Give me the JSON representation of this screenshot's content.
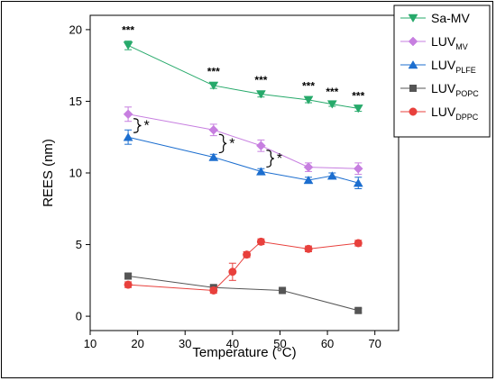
{
  "chart_data": {
    "type": "scatter",
    "xlabel": "Temperature (°C)",
    "ylabel": "REES (nm)",
    "xlim": [
      10,
      75
    ],
    "ylim": [
      -1,
      21
    ],
    "xticks": [
      10,
      20,
      30,
      40,
      50,
      60,
      70
    ],
    "yticks": [
      0,
      5,
      10,
      15,
      20
    ],
    "legend_position": "top-right",
    "series": [
      {
        "name": "Sa-MV",
        "name_main": "Sa-MV",
        "name_sub": "",
        "color": "#26a96a",
        "marker": "triangle-down",
        "x": [
          18,
          36,
          46,
          56,
          61,
          66.5
        ],
        "y": [
          18.9,
          16.1,
          15.5,
          15.1,
          14.8,
          14.5
        ],
        "err": [
          0.3,
          0.2,
          0.2,
          0.2,
          0.15,
          0.2
        ]
      },
      {
        "name": "LUVMV",
        "name_main": "LUV",
        "name_sub": "MV",
        "color": "#c77fe0",
        "marker": "diamond",
        "x": [
          18,
          36,
          46,
          56,
          66.5
        ],
        "y": [
          14.1,
          13.0,
          11.9,
          10.4,
          10.3
        ],
        "err": [
          0.5,
          0.4,
          0.4,
          0.3,
          0.4
        ]
      },
      {
        "name": "LUVPLFE",
        "name_main": "LUV",
        "name_sub": "PLFE",
        "color": "#1c6ecf",
        "marker": "triangle-up",
        "x": [
          18,
          36,
          46,
          56,
          61,
          66.5
        ],
        "y": [
          12.5,
          11.1,
          10.1,
          9.5,
          9.8,
          9.3
        ],
        "err": [
          0.5,
          0.2,
          0.2,
          0.2,
          0.2,
          0.4
        ]
      },
      {
        "name": "LUVPOPC",
        "name_main": "LUV",
        "name_sub": "POPC",
        "color": "#555555",
        "marker": "square",
        "x": [
          18,
          36,
          50.5,
          66.5
        ],
        "y": [
          2.8,
          2.0,
          1.8,
          0.4
        ],
        "err": [
          0.2,
          0.15,
          0.1,
          0.15
        ]
      },
      {
        "name": "LUVDPPC",
        "name_main": "LUV",
        "name_sub": "DPPC",
        "color": "#e8403c",
        "marker": "circle",
        "x": [
          18,
          36,
          40,
          43,
          46,
          56,
          66.5
        ],
        "y": [
          2.2,
          1.8,
          3.1,
          4.3,
          5.2,
          4.7,
          5.1
        ],
        "err": [
          0.2,
          0.2,
          0.6,
          0.2,
          0.2,
          0.2,
          0.2
        ]
      }
    ],
    "annotations": [
      {
        "text": "***",
        "x": 18,
        "y": 19.9
      },
      {
        "text": "***",
        "x": 36,
        "y": 17.0
      },
      {
        "text": "***",
        "x": 46,
        "y": 16.4
      },
      {
        "text": "***",
        "x": 56,
        "y": 16.0
      },
      {
        "text": "***",
        "x": 61,
        "y": 15.6
      },
      {
        "text": "***",
        "x": 66.5,
        "y": 15.3
      }
    ],
    "braces": [
      {
        "label": "*",
        "x": 18,
        "y_top": 14.1,
        "y_bottom": 12.5
      },
      {
        "label": "*",
        "x": 36,
        "y_top": 13.0,
        "y_bottom": 11.1
      },
      {
        "label": "*",
        "x": 46,
        "y_top": 11.9,
        "y_bottom": 10.1
      }
    ]
  }
}
